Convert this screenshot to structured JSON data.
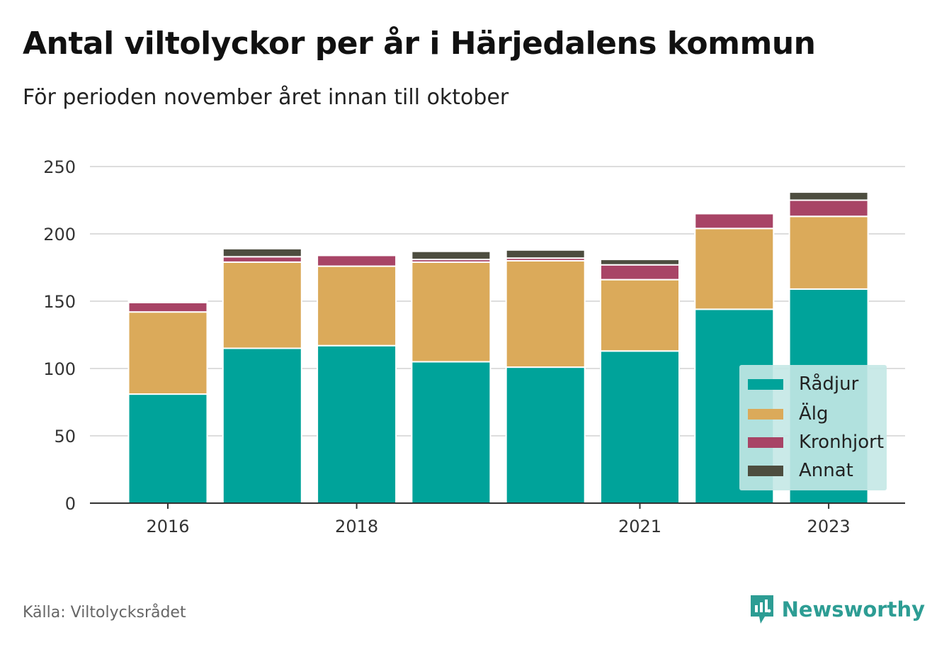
{
  "header": {
    "title": "Antal viltolyckor per år i Härjedalens kommun",
    "subtitle": "För perioden november året innan till oktober"
  },
  "footer": {
    "source": "Källa: Viltolycksrådet",
    "brand": "Newsworthy",
    "brand_color": "#2d9d94"
  },
  "chart_data": {
    "type": "bar",
    "stacked": true,
    "categories": [
      "2016",
      "2017",
      "2018",
      "2019",
      "2020",
      "2021",
      "2022",
      "2023"
    ],
    "x_tick_labels": [
      "2016",
      "2018",
      "2021",
      "2023"
    ],
    "y_ticks": [
      0,
      50,
      100,
      150,
      200,
      250
    ],
    "ylim": [
      0,
      260
    ],
    "grid": true,
    "legend_position": "bottom-right",
    "series": [
      {
        "name": "Rådjur",
        "color": "#00a39a",
        "values": [
          81,
          115,
          117,
          105,
          101,
          113,
          144,
          159
        ]
      },
      {
        "name": "Älg",
        "color": "#dbaa5a",
        "values": [
          61,
          64,
          59,
          74,
          79,
          53,
          60,
          54
        ]
      },
      {
        "name": "Kronhjort",
        "color": "#a84466",
        "values": [
          7,
          4,
          8,
          2,
          2,
          11,
          11,
          12
        ]
      },
      {
        "name": "Annat",
        "color": "#4d4d3f",
        "values": [
          1,
          6,
          1,
          6,
          6,
          4,
          1,
          6
        ]
      }
    ]
  }
}
